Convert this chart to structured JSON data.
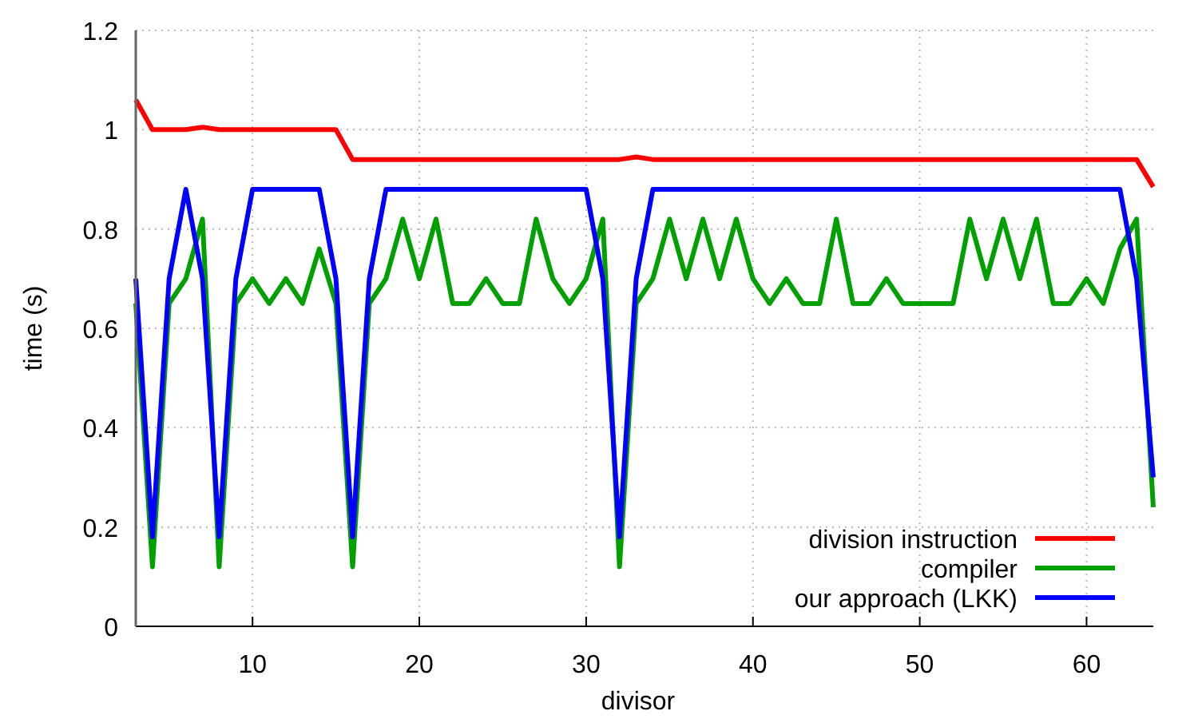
{
  "chart_data": {
    "type": "line",
    "xlabel": "divisor",
    "ylabel": "time (s)",
    "x": [
      3,
      4,
      5,
      6,
      7,
      8,
      9,
      10,
      11,
      12,
      13,
      14,
      15,
      16,
      17,
      18,
      19,
      20,
      21,
      22,
      23,
      24,
      25,
      26,
      27,
      28,
      29,
      30,
      31,
      32,
      33,
      34,
      35,
      36,
      37,
      38,
      39,
      40,
      41,
      42,
      43,
      44,
      45,
      46,
      47,
      48,
      49,
      50,
      51,
      52,
      53,
      54,
      55,
      56,
      57,
      58,
      59,
      60,
      61,
      62,
      63,
      64
    ],
    "series": [
      {
        "name": "division instruction",
        "color": "#ff0000",
        "values": [
          1.06,
          1.0,
          1.0,
          1.0,
          1.005,
          1.0,
          1.0,
          1.0,
          1.0,
          1.0,
          1.0,
          1.0,
          1.0,
          0.94,
          0.94,
          0.94,
          0.94,
          0.94,
          0.94,
          0.94,
          0.94,
          0.94,
          0.94,
          0.94,
          0.94,
          0.94,
          0.94,
          0.94,
          0.94,
          0.94,
          0.945,
          0.94,
          0.94,
          0.94,
          0.94,
          0.94,
          0.94,
          0.94,
          0.94,
          0.94,
          0.94,
          0.94,
          0.94,
          0.94,
          0.94,
          0.94,
          0.94,
          0.94,
          0.94,
          0.94,
          0.94,
          0.94,
          0.94,
          0.94,
          0.94,
          0.94,
          0.94,
          0.94,
          0.94,
          0.94,
          0.94,
          0.885
        ]
      },
      {
        "name": "compiler",
        "color": "#00a000",
        "values": [
          0.65,
          0.12,
          0.65,
          0.7,
          0.82,
          0.12,
          0.65,
          0.7,
          0.65,
          0.7,
          0.65,
          0.76,
          0.65,
          0.12,
          0.65,
          0.7,
          0.82,
          0.7,
          0.82,
          0.65,
          0.65,
          0.7,
          0.65,
          0.65,
          0.82,
          0.7,
          0.65,
          0.7,
          0.82,
          0.12,
          0.65,
          0.7,
          0.82,
          0.7,
          0.82,
          0.7,
          0.82,
          0.7,
          0.65,
          0.7,
          0.65,
          0.65,
          0.82,
          0.65,
          0.65,
          0.7,
          0.65,
          0.65,
          0.65,
          0.65,
          0.82,
          0.7,
          0.82,
          0.7,
          0.82,
          0.65,
          0.65,
          0.7,
          0.65,
          0.76,
          0.82,
          0.24
        ]
      },
      {
        "name": "our approach (LKK)",
        "color": "#0000ff",
        "values": [
          0.7,
          0.18,
          0.7,
          0.88,
          0.7,
          0.18,
          0.7,
          0.88,
          0.88,
          0.88,
          0.88,
          0.88,
          0.7,
          0.18,
          0.7,
          0.88,
          0.88,
          0.88,
          0.88,
          0.88,
          0.88,
          0.88,
          0.88,
          0.88,
          0.88,
          0.88,
          0.88,
          0.88,
          0.7,
          0.18,
          0.7,
          0.88,
          0.88,
          0.88,
          0.88,
          0.88,
          0.88,
          0.88,
          0.88,
          0.88,
          0.88,
          0.88,
          0.88,
          0.88,
          0.88,
          0.88,
          0.88,
          0.88,
          0.88,
          0.88,
          0.88,
          0.88,
          0.88,
          0.88,
          0.88,
          0.88,
          0.88,
          0.88,
          0.88,
          0.88,
          0.7,
          0.3
        ]
      }
    ],
    "xlim": [
      3,
      64
    ],
    "xticks": [
      10,
      20,
      30,
      40,
      50,
      60
    ],
    "ylim": [
      0,
      1.2
    ],
    "yticks": [
      0,
      0.2,
      0.4,
      0.6,
      0.8,
      1,
      1.2
    ],
    "grid": true,
    "legend": "bottom right",
    "line_style": "solid",
    "marker": "none"
  }
}
